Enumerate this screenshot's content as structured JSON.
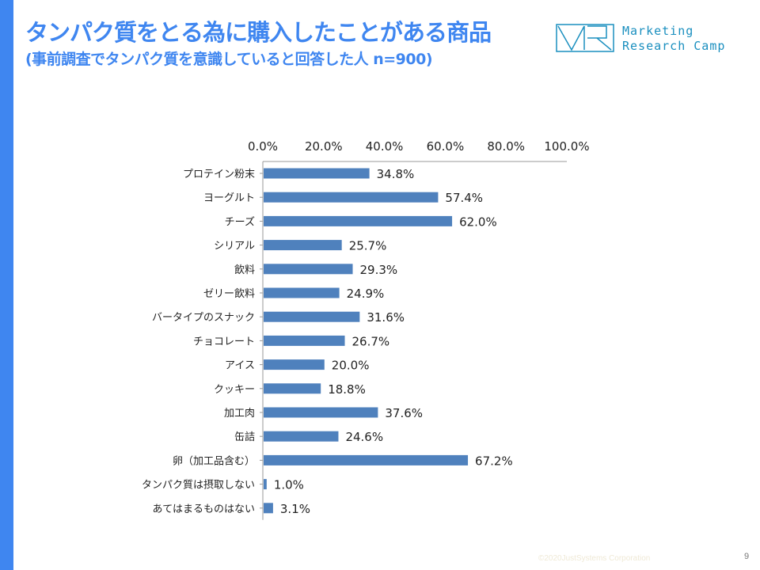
{
  "header": {
    "title": "タンパク質をとる為に購入したことがある商品",
    "subtitle": "(事前調査でタンパク質を意識していると回答した人 n=900)"
  },
  "logo": {
    "line1": "Marketing",
    "line2": "Research Camp",
    "mark": "MR"
  },
  "footer": {
    "copyright": "©2020JustSystems Corporation",
    "page": "9"
  },
  "colors": {
    "accent": "#3f86f0",
    "bar": "#4f81bd"
  },
  "chart_data": {
    "type": "bar",
    "orientation": "horizontal",
    "categories": [
      "プロテイン粉末",
      "ヨーグルト",
      "チーズ",
      "シリアル",
      "飲料",
      "ゼリー飲料",
      "バータイプのスナック",
      "チョコレート",
      "アイス",
      "クッキー",
      "加工肉",
      "缶詰",
      "卵（加工品含む）",
      "タンパク質は摂取しない",
      "あてはまるものはない"
    ],
    "values": [
      34.8,
      57.4,
      62.0,
      25.7,
      29.3,
      24.9,
      31.6,
      26.7,
      20.0,
      18.8,
      37.6,
      24.6,
      67.2,
      1.0,
      3.1
    ],
    "value_labels": [
      "34.8%",
      "57.4%",
      "62.0%",
      "25.7%",
      "29.3%",
      "24.9%",
      "31.6%",
      "26.7%",
      "20.0%",
      "18.8%",
      "37.6%",
      "24.6%",
      "67.2%",
      "1.0%",
      "3.1%"
    ],
    "xlim": [
      0,
      100
    ],
    "xticks": [
      "0.0%",
      "20.0%",
      "40.0%",
      "60.0%",
      "80.0%",
      "100.0%"
    ],
    "axis_position": "top",
    "grid": false,
    "legend": "none"
  }
}
